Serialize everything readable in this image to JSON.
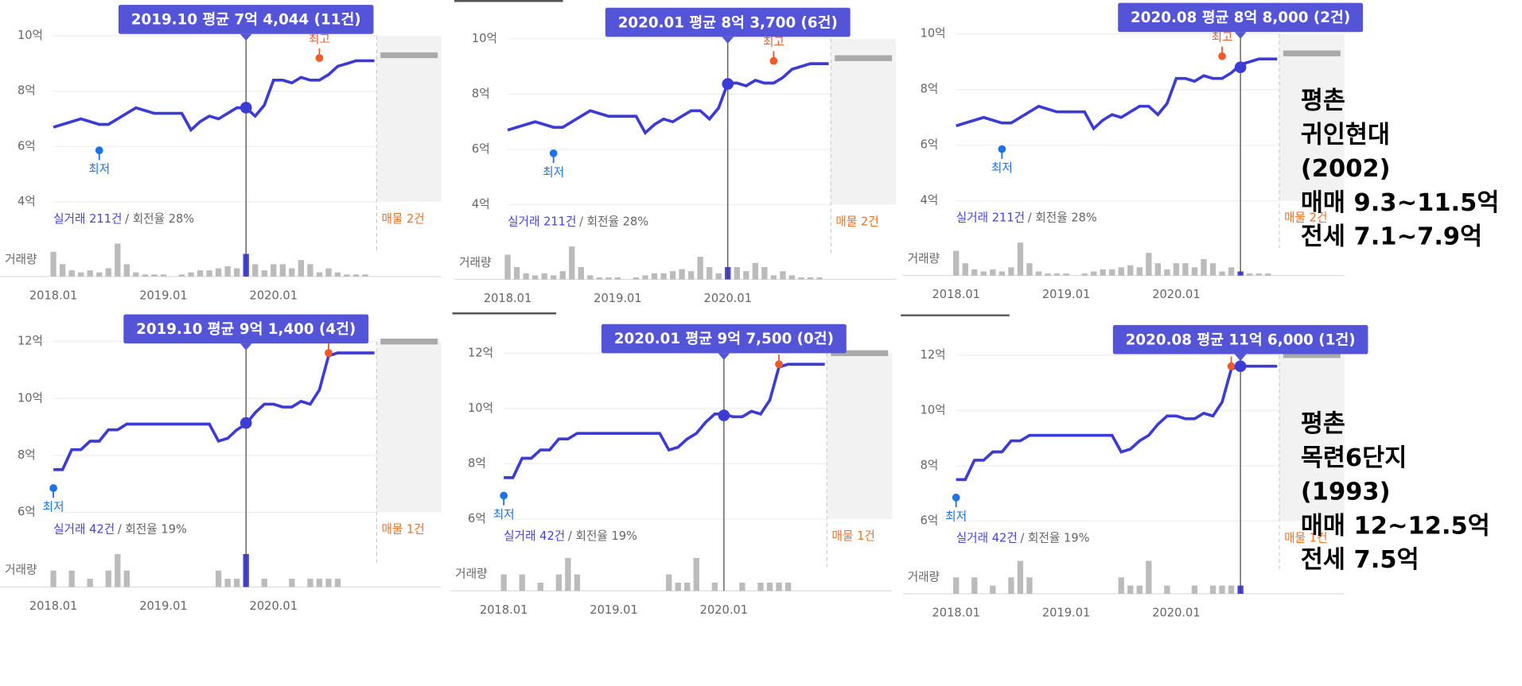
{
  "chart_data": [
    {
      "type": "line",
      "tooltip": "2019.10 평균 7억 4,044 (11건)",
      "color": "#3b3bd6",
      "x": [
        "2018.01",
        "2018.02",
        "2018.03",
        "2018.04",
        "2018.05",
        "2018.06",
        "2018.07",
        "2018.08",
        "2018.09",
        "2018.10",
        "2018.11",
        "2018.12",
        "2019.01",
        "2019.02",
        "2019.03",
        "2019.04",
        "2019.05",
        "2019.06",
        "2019.07",
        "2019.08",
        "2019.09",
        "2019.10",
        "2019.11",
        "2019.12",
        "2020.01",
        "2020.02",
        "2020.03",
        "2020.04",
        "2020.05",
        "2020.06",
        "2020.07",
        "2020.08",
        "2020.09",
        "2020.10",
        "2020.11",
        "2020.12"
      ],
      "values": [
        6.7,
        6.8,
        6.9,
        7.0,
        6.9,
        6.8,
        6.8,
        7.0,
        7.2,
        7.4,
        7.3,
        7.2,
        7.2,
        7.2,
        7.2,
        6.6,
        6.9,
        7.1,
        7.0,
        7.2,
        7.4,
        7.4,
        7.1,
        7.5,
        8.4,
        8.4,
        8.3,
        8.5,
        8.4,
        8.4,
        8.6,
        8.9,
        9.0,
        9.1,
        9.1,
        9.1
      ],
      "volume": [
        12,
        6,
        3,
        2,
        3,
        2,
        4,
        16,
        6,
        2,
        1,
        1,
        1,
        0,
        1,
        2,
        3,
        3,
        4,
        5,
        4,
        11,
        6,
        3,
        6,
        6,
        4,
        8,
        6,
        2,
        4,
        2,
        1,
        1,
        1,
        0
      ],
      "highlight": {
        "x": "2019.10",
        "value": 7.4044
      },
      "low": {
        "label": "최저",
        "x": "2018.06",
        "value": 5.86
      },
      "high": {
        "label": "최고",
        "x": "2020.06",
        "value": 9.2
      },
      "listing_value": 9.3,
      "ylim": [
        4,
        10
      ],
      "yticks": [
        {
          "value": 10,
          "label": "10억"
        },
        {
          "value": 8,
          "label": "8억"
        },
        {
          "value": 6,
          "label": "6억"
        },
        {
          "value": 4,
          "label": "4억"
        }
      ],
      "xticks": [
        "2018.01",
        "2019.01",
        "2020.01"
      ],
      "trades": "실거래 211건",
      "turnover": "/ 회전율 28%",
      "listings": "매물 2건",
      "volume_label": "거래량"
    },
    {
      "type": "line",
      "tooltip": "2020.01 평균 8억 3,700 (6건)",
      "color": "#3b3bd6",
      "x": [
        "2018.01",
        "2018.02",
        "2018.03",
        "2018.04",
        "2018.05",
        "2018.06",
        "2018.07",
        "2018.08",
        "2018.09",
        "2018.10",
        "2018.11",
        "2018.12",
        "2019.01",
        "2019.02",
        "2019.03",
        "2019.04",
        "2019.05",
        "2019.06",
        "2019.07",
        "2019.08",
        "2019.09",
        "2019.10",
        "2019.11",
        "2019.12",
        "2020.01",
        "2020.02",
        "2020.03",
        "2020.04",
        "2020.05",
        "2020.06",
        "2020.07",
        "2020.08",
        "2020.09",
        "2020.10",
        "2020.11",
        "2020.12"
      ],
      "values": [
        6.7,
        6.8,
        6.9,
        7.0,
        6.9,
        6.8,
        6.8,
        7.0,
        7.2,
        7.4,
        7.3,
        7.2,
        7.2,
        7.2,
        7.2,
        6.6,
        6.9,
        7.1,
        7.0,
        7.2,
        7.4,
        7.4,
        7.1,
        7.5,
        8.4,
        8.4,
        8.3,
        8.5,
        8.4,
        8.4,
        8.6,
        8.9,
        9.0,
        9.1,
        9.1,
        9.1
      ],
      "volume": [
        12,
        6,
        3,
        2,
        3,
        2,
        4,
        16,
        6,
        2,
        1,
        1,
        1,
        0,
        1,
        2,
        3,
        3,
        4,
        5,
        4,
        11,
        6,
        3,
        6,
        6,
        4,
        8,
        6,
        2,
        4,
        2,
        1,
        1,
        1,
        0
      ],
      "highlight": {
        "x": "2020.01",
        "value": 8.37
      },
      "low": {
        "label": "최저",
        "x": "2018.06",
        "value": 5.86
      },
      "high": {
        "label": "최고",
        "x": "2020.06",
        "value": 9.2
      },
      "listing_value": 9.3,
      "ylim": [
        4,
        10
      ],
      "yticks": [
        {
          "value": 10,
          "label": "10억"
        },
        {
          "value": 8,
          "label": "8억"
        },
        {
          "value": 6,
          "label": "6억"
        },
        {
          "value": 4,
          "label": "4억"
        }
      ],
      "xticks": [
        "2018.01",
        "2019.01",
        "2020.01"
      ],
      "trades": "실거래 211건",
      "turnover": "/ 회전율 28%",
      "listings": "매물 2건",
      "volume_label": "거래량"
    },
    {
      "type": "line",
      "tooltip": "2020.08 평균 8억 8,000 (2건)",
      "color": "#3b3bd6",
      "x": [
        "2018.01",
        "2018.02",
        "2018.03",
        "2018.04",
        "2018.05",
        "2018.06",
        "2018.07",
        "2018.08",
        "2018.09",
        "2018.10",
        "2018.11",
        "2018.12",
        "2019.01",
        "2019.02",
        "2019.03",
        "2019.04",
        "2019.05",
        "2019.06",
        "2019.07",
        "2019.08",
        "2019.09",
        "2019.10",
        "2019.11",
        "2019.12",
        "2020.01",
        "2020.02",
        "2020.03",
        "2020.04",
        "2020.05",
        "2020.06",
        "2020.07",
        "2020.08",
        "2020.09",
        "2020.10",
        "2020.11",
        "2020.12"
      ],
      "values": [
        6.7,
        6.8,
        6.9,
        7.0,
        6.9,
        6.8,
        6.8,
        7.0,
        7.2,
        7.4,
        7.3,
        7.2,
        7.2,
        7.2,
        7.2,
        6.6,
        6.9,
        7.1,
        7.0,
        7.2,
        7.4,
        7.4,
        7.1,
        7.5,
        8.4,
        8.4,
        8.3,
        8.5,
        8.4,
        8.4,
        8.6,
        8.9,
        9.0,
        9.1,
        9.1,
        9.1
      ],
      "volume": [
        12,
        6,
        3,
        2,
        3,
        2,
        4,
        16,
        6,
        2,
        1,
        1,
        1,
        0,
        1,
        2,
        3,
        3,
        4,
        5,
        4,
        11,
        6,
        3,
        6,
        6,
        4,
        8,
        6,
        2,
        4,
        2,
        1,
        1,
        1,
        0
      ],
      "highlight": {
        "x": "2020.08",
        "value": 8.8
      },
      "low": {
        "label": "최저",
        "x": "2018.06",
        "value": 5.86
      },
      "high": {
        "label": "최고",
        "x": "2020.06",
        "value": 9.2
      },
      "listing_value": 9.3,
      "ylim": [
        4,
        10
      ],
      "yticks": [
        {
          "value": 10,
          "label": "10억"
        },
        {
          "value": 8,
          "label": "8억"
        },
        {
          "value": 6,
          "label": "6억"
        },
        {
          "value": 4,
          "label": "4억"
        }
      ],
      "xticks": [
        "2018.01",
        "2019.01",
        "2020.01"
      ],
      "trades": "실거래 211건",
      "turnover": "/ 회전율 28%",
      "listings": "매물 2건",
      "volume_label": "거래량"
    },
    {
      "type": "line",
      "tooltip": "2019.10 평균 9억 1,400 (4건)",
      "color": "#3b3bd6",
      "x": [
        "2018.01",
        "2018.02",
        "2018.03",
        "2018.04",
        "2018.05",
        "2018.06",
        "2018.07",
        "2018.08",
        "2018.09",
        "2018.10",
        "2018.11",
        "2018.12",
        "2019.01",
        "2019.02",
        "2019.03",
        "2019.04",
        "2019.05",
        "2019.06",
        "2019.07",
        "2019.08",
        "2019.09",
        "2019.10",
        "2019.11",
        "2019.12",
        "2020.01",
        "2020.02",
        "2020.03",
        "2020.04",
        "2020.05",
        "2020.06",
        "2020.07",
        "2020.08",
        "2020.09",
        "2020.10",
        "2020.11",
        "2020.12"
      ],
      "values": [
        7.5,
        7.5,
        8.2,
        8.2,
        8.5,
        8.5,
        8.9,
        8.9,
        9.1,
        9.1,
        9.1,
        9.1,
        9.1,
        9.1,
        9.1,
        9.1,
        9.1,
        9.1,
        8.5,
        8.6,
        8.9,
        9.1,
        9.5,
        9.8,
        9.8,
        9.7,
        9.7,
        9.9,
        9.8,
        10.3,
        11.5,
        11.6,
        11.6,
        11.6,
        11.6,
        11.6
      ],
      "volume": [
        2,
        0,
        2,
        0,
        1,
        0,
        2,
        4,
        2,
        0,
        0,
        0,
        0,
        0,
        0,
        0,
        0,
        0,
        2,
        1,
        1,
        4,
        0,
        1,
        0,
        0,
        1,
        0,
        1,
        1,
        1,
        1,
        0,
        0,
        0,
        0
      ],
      "highlight": {
        "x": "2019.10",
        "value": 9.14
      },
      "low": {
        "label": "최저",
        "x": "2018.01",
        "value": 6.85
      },
      "high": {
        "label": "최고",
        "x": "2020.07",
        "value": 11.6
      },
      "listing_value": 12,
      "ylim": [
        6,
        12
      ],
      "yticks": [
        {
          "value": 12,
          "label": "12억"
        },
        {
          "value": 10,
          "label": "10억"
        },
        {
          "value": 8,
          "label": "8억"
        },
        {
          "value": 6,
          "label": "6억"
        }
      ],
      "xticks": [
        "2018.01",
        "2019.01",
        "2020.01"
      ],
      "trades": "실거래 42건",
      "turnover": "/ 회전율 19%",
      "listings": "매물 1건",
      "volume_label": "거래량"
    },
    {
      "type": "line",
      "tooltip": "2020.01 평균 9억 7,500 (0건)",
      "color": "#3b3bd6",
      "x": [
        "2018.01",
        "2018.02",
        "2018.03",
        "2018.04",
        "2018.05",
        "2018.06",
        "2018.07",
        "2018.08",
        "2018.09",
        "2018.10",
        "2018.11",
        "2018.12",
        "2019.01",
        "2019.02",
        "2019.03",
        "2019.04",
        "2019.05",
        "2019.06",
        "2019.07",
        "2019.08",
        "2019.09",
        "2019.10",
        "2019.11",
        "2019.12",
        "2020.01",
        "2020.02",
        "2020.03",
        "2020.04",
        "2020.05",
        "2020.06",
        "2020.07",
        "2020.08",
        "2020.09",
        "2020.10",
        "2020.11",
        "2020.12"
      ],
      "values": [
        7.5,
        7.5,
        8.2,
        8.2,
        8.5,
        8.5,
        8.9,
        8.9,
        9.1,
        9.1,
        9.1,
        9.1,
        9.1,
        9.1,
        9.1,
        9.1,
        9.1,
        9.1,
        8.5,
        8.6,
        8.9,
        9.1,
        9.5,
        9.8,
        9.8,
        9.7,
        9.7,
        9.9,
        9.8,
        10.3,
        11.5,
        11.6,
        11.6,
        11.6,
        11.6,
        11.6
      ],
      "volume": [
        2,
        0,
        2,
        0,
        1,
        0,
        2,
        4,
        2,
        0,
        0,
        0,
        0,
        0,
        0,
        0,
        0,
        0,
        2,
        1,
        1,
        4,
        0,
        1,
        0,
        0,
        1,
        0,
        1,
        1,
        1,
        1,
        0,
        0,
        0,
        0
      ],
      "highlight": {
        "x": "2020.01",
        "value": 9.75
      },
      "low": {
        "label": "최저",
        "x": "2018.01",
        "value": 6.85
      },
      "high": {
        "label": "최고",
        "x": "2020.07",
        "value": 11.6
      },
      "listing_value": 12,
      "ylim": [
        6,
        12
      ],
      "yticks": [
        {
          "value": 12,
          "label": "12억"
        },
        {
          "value": 10,
          "label": "10억"
        },
        {
          "value": 8,
          "label": "8억"
        },
        {
          "value": 6,
          "label": "6억"
        }
      ],
      "xticks": [
        "2018.01",
        "2019.01",
        "2020.01"
      ],
      "trades": "실거래 42건",
      "turnover": "/ 회전율 19%",
      "listings": "매물 1건",
      "volume_label": "거래량"
    },
    {
      "type": "line",
      "tooltip": "2020.08 평균 11억 6,000 (1건)",
      "color": "#3b3bd6",
      "x": [
        "2018.01",
        "2018.02",
        "2018.03",
        "2018.04",
        "2018.05",
        "2018.06",
        "2018.07",
        "2018.08",
        "2018.09",
        "2018.10",
        "2018.11",
        "2018.12",
        "2019.01",
        "2019.02",
        "2019.03",
        "2019.04",
        "2019.05",
        "2019.06",
        "2019.07",
        "2019.08",
        "2019.09",
        "2019.10",
        "2019.11",
        "2019.12",
        "2020.01",
        "2020.02",
        "2020.03",
        "2020.04",
        "2020.05",
        "2020.06",
        "2020.07",
        "2020.08",
        "2020.09",
        "2020.10",
        "2020.11",
        "2020.12"
      ],
      "values": [
        7.5,
        7.5,
        8.2,
        8.2,
        8.5,
        8.5,
        8.9,
        8.9,
        9.1,
        9.1,
        9.1,
        9.1,
        9.1,
        9.1,
        9.1,
        9.1,
        9.1,
        9.1,
        8.5,
        8.6,
        8.9,
        9.1,
        9.5,
        9.8,
        9.8,
        9.7,
        9.7,
        9.9,
        9.8,
        10.3,
        11.5,
        11.6,
        11.6,
        11.6,
        11.6,
        11.6
      ],
      "volume": [
        2,
        0,
        2,
        0,
        1,
        0,
        2,
        4,
        2,
        0,
        0,
        0,
        0,
        0,
        0,
        0,
        0,
        0,
        2,
        1,
        1,
        4,
        0,
        1,
        0,
        0,
        1,
        0,
        1,
        1,
        1,
        1,
        0,
        0,
        0,
        0
      ],
      "highlight": {
        "x": "2020.08",
        "value": 11.6
      },
      "low": {
        "label": "최저",
        "x": "2018.01",
        "value": 6.85
      },
      "high": {
        "label": "최고",
        "x": "2020.07",
        "value": 11.6
      },
      "listing_value": 12,
      "ylim": [
        6,
        12
      ],
      "yticks": [
        {
          "value": 12,
          "label": "12억"
        },
        {
          "value": 10,
          "label": "10억"
        },
        {
          "value": 8,
          "label": "8억"
        },
        {
          "value": 6,
          "label": "6억"
        }
      ],
      "xticks": [
        "2018.01",
        "2019.01",
        "2020.01"
      ],
      "trades": "실거래 42건",
      "turnover": "/ 회전율 19%",
      "listings": "매물 1건",
      "volume_label": "거래량"
    }
  ],
  "notes": [
    {
      "lines": [
        "평촌",
        "귀인현대",
        "(2002)",
        "매매 9.3~11.5억",
        "전세 7.1~7.9억"
      ]
    },
    {
      "lines": [
        "평촌",
        "목련6단지",
        "(1993)",
        "매매 12~12.5억",
        "전세 7.5억"
      ]
    }
  ]
}
